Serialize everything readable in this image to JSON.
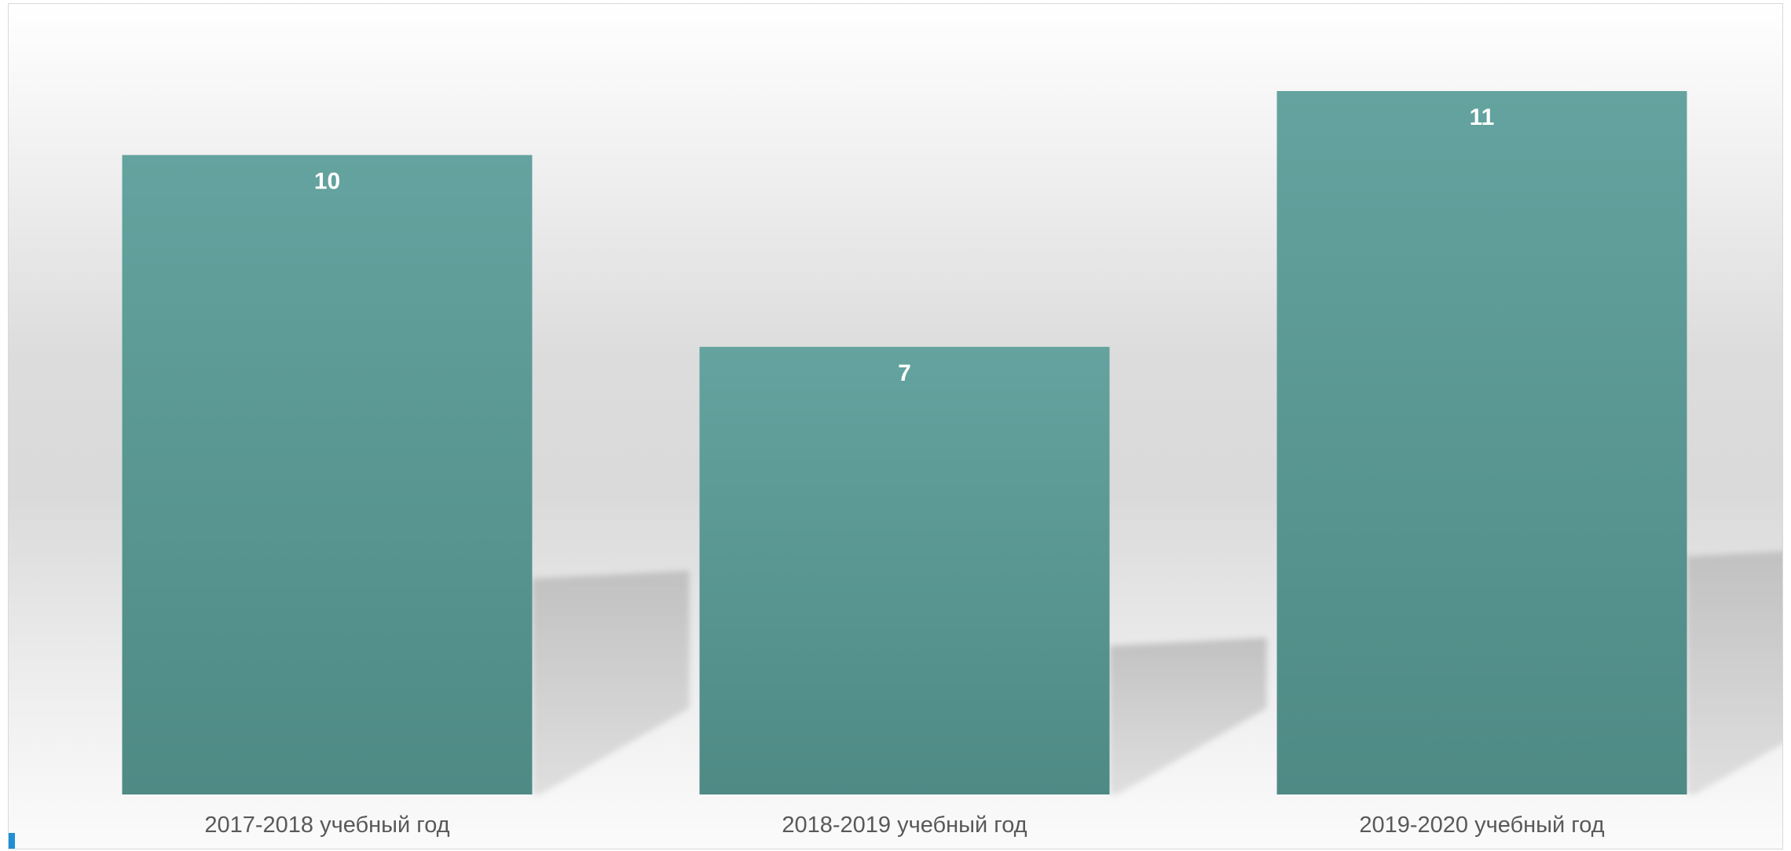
{
  "chart_data": {
    "type": "bar",
    "categories": [
      "2017-2018 учебный год",
      "2018-2019 учебный год",
      "2019-2020 учебный год"
    ],
    "values": [
      10,
      7,
      11
    ],
    "data_labels": [
      "10",
      "7",
      "11"
    ],
    "title": "",
    "xlabel": "",
    "ylabel": "",
    "ylim": [
      0,
      11
    ],
    "grid": false,
    "legend": "none",
    "bar_color_top": "#64a39f",
    "bar_color_bottom": "#4f8a85",
    "shadow_color": "#bfbfbf"
  }
}
